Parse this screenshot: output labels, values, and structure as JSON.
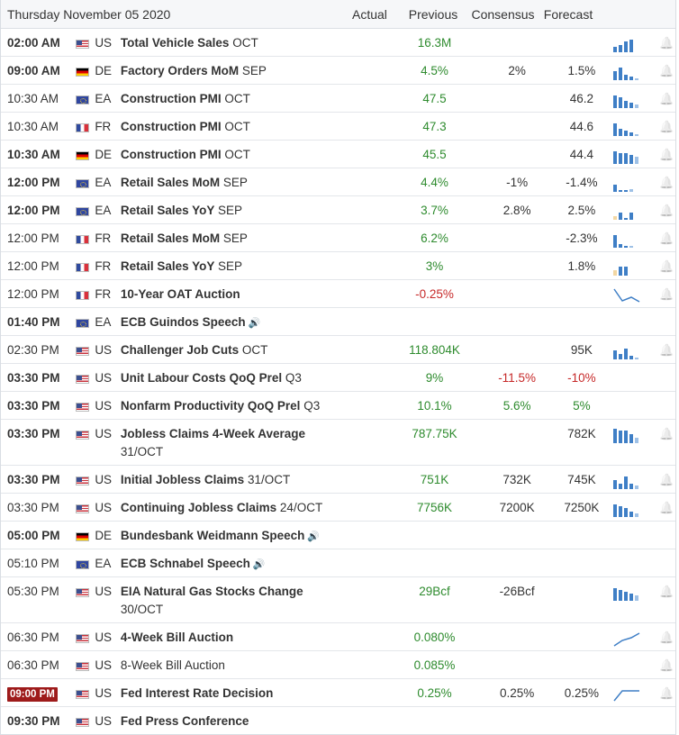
{
  "header": {
    "date": "Thursday November 05 2020",
    "actual": "Actual",
    "previous": "Previous",
    "consensus": "Consensus",
    "forecast": "Forecast"
  },
  "events": [
    {
      "time": "02:00 AM",
      "bold": true,
      "country": "US",
      "flag": "us",
      "name": "Total Vehicle Sales",
      "suffix": "OCT",
      "previous": "16.3M",
      "prev_color": "green",
      "consensus": "",
      "forecast": "",
      "spark": "bars",
      "bell": true
    },
    {
      "time": "09:00 AM",
      "bold": true,
      "country": "DE",
      "flag": "de",
      "name": "Factory Orders MoM",
      "suffix": "SEP",
      "previous": "4.5%",
      "prev_color": "green",
      "consensus": "2%",
      "forecast": "1.5%",
      "spark": "bars",
      "bell": true
    },
    {
      "time": "10:30 AM",
      "bold": false,
      "country": "EA",
      "flag": "eu",
      "name": "Construction PMI",
      "suffix": "OCT",
      "previous": "47.5",
      "prev_color": "green",
      "consensus": "",
      "forecast": "46.2",
      "spark": "bars",
      "bell": true
    },
    {
      "time": "10:30 AM",
      "bold": false,
      "country": "FR",
      "flag": "fr",
      "name": "Construction PMI",
      "suffix": "OCT",
      "previous": "47.3",
      "prev_color": "green",
      "consensus": "",
      "forecast": "44.6",
      "spark": "bars",
      "bell": true
    },
    {
      "time": "10:30 AM",
      "bold": true,
      "country": "DE",
      "flag": "de",
      "name": "Construction PMI",
      "suffix": "OCT",
      "previous": "45.5",
      "prev_color": "green",
      "consensus": "",
      "forecast": "44.4",
      "spark": "bars",
      "bell": true
    },
    {
      "time": "12:00 PM",
      "bold": true,
      "country": "EA",
      "flag": "eu",
      "name": "Retail Sales MoM",
      "suffix": "SEP",
      "previous": "4.4%",
      "prev_color": "green",
      "consensus": "-1%",
      "forecast": "-1.4%",
      "spark": "bars",
      "bell": true
    },
    {
      "time": "12:00 PM",
      "bold": true,
      "country": "EA",
      "flag": "eu",
      "name": "Retail Sales YoY",
      "suffix": "SEP",
      "previous": "3.7%",
      "prev_color": "green",
      "consensus": "2.8%",
      "forecast": "2.5%",
      "spark": "bars",
      "bell": true
    },
    {
      "time": "12:00 PM",
      "bold": false,
      "country": "FR",
      "flag": "fr",
      "name": "Retail Sales MoM",
      "suffix": "SEP",
      "previous": "6.2%",
      "prev_color": "green",
      "consensus": "",
      "forecast": "-2.3%",
      "spark": "bars",
      "bell": true
    },
    {
      "time": "12:00 PM",
      "bold": false,
      "country": "FR",
      "flag": "fr",
      "name": "Retail Sales YoY",
      "suffix": "SEP",
      "previous": "3%",
      "prev_color": "green",
      "consensus": "",
      "forecast": "1.8%",
      "spark": "bars",
      "bell": true
    },
    {
      "time": "12:00 PM",
      "bold": false,
      "country": "FR",
      "flag": "fr",
      "name": "10-Year OAT Auction",
      "suffix": "",
      "previous": "-0.25%",
      "prev_color": "red",
      "consensus": "",
      "forecast": "",
      "spark": "line-down",
      "bell": true
    },
    {
      "time": "01:40 PM",
      "bold": true,
      "country": "EA",
      "flag": "eu",
      "name": "ECB Guindos Speech",
      "suffix": "",
      "speech": true,
      "previous": "",
      "prev_color": "green",
      "consensus": "",
      "forecast": "",
      "spark": "",
      "bell": false
    },
    {
      "time": "02:30 PM",
      "bold": false,
      "country": "US",
      "flag": "us",
      "name": "Challenger Job Cuts",
      "suffix": "OCT",
      "previous": "118.804K",
      "prev_color": "green",
      "consensus": "",
      "forecast": "95K",
      "spark": "bars",
      "bell": true
    },
    {
      "time": "03:30 PM",
      "bold": true,
      "country": "US",
      "flag": "us",
      "name": "Unit Labour Costs QoQ Prel",
      "suffix": "Q3",
      "previous": "9%",
      "prev_color": "green",
      "consensus": "-11.5%",
      "cons_color": "red",
      "forecast": "-10%",
      "fore_color": "red",
      "spark": "",
      "bell": false
    },
    {
      "time": "03:30 PM",
      "bold": true,
      "country": "US",
      "flag": "us",
      "name": "Nonfarm Productivity QoQ Prel",
      "suffix": "Q3",
      "previous": "10.1%",
      "prev_color": "green",
      "consensus": "5.6%",
      "cons_color": "green",
      "forecast": "5%",
      "fore_color": "green",
      "spark": "",
      "bell": false
    },
    {
      "time": "03:30 PM",
      "bold": true,
      "country": "US",
      "flag": "us",
      "name": "Jobless Claims 4-Week Average",
      "suffix": "31/OCT",
      "tall": true,
      "previous": "787.75K",
      "prev_color": "green",
      "consensus": "",
      "forecast": "782K",
      "spark": "bars",
      "bell": true
    },
    {
      "time": "03:30 PM",
      "bold": true,
      "country": "US",
      "flag": "us",
      "name": "Initial Jobless Claims",
      "suffix": "31/OCT",
      "previous": "751K",
      "prev_color": "green",
      "consensus": "732K",
      "forecast": "745K",
      "spark": "bars",
      "bell": true
    },
    {
      "time": "03:30 PM",
      "bold": false,
      "country": "US",
      "flag": "us",
      "name": "Continuing Jobless Claims",
      "suffix": "24/OCT",
      "previous": "7756K",
      "prev_color": "green",
      "consensus": "7200K",
      "forecast": "7250K",
      "spark": "bars",
      "bell": true
    },
    {
      "time": "05:00 PM",
      "bold": true,
      "country": "DE",
      "flag": "de",
      "name": "Bundesbank Weidmann Speech",
      "suffix": "",
      "speech": true,
      "previous": "",
      "prev_color": "green",
      "consensus": "",
      "forecast": "",
      "spark": "",
      "bell": false
    },
    {
      "time": "05:10 PM",
      "bold": false,
      "country": "EA",
      "flag": "eu",
      "name": "ECB Schnabel Speech",
      "suffix": "",
      "speech": true,
      "previous": "",
      "prev_color": "green",
      "consensus": "",
      "forecast": "",
      "spark": "",
      "bell": false
    },
    {
      "time": "05:30 PM",
      "bold": false,
      "country": "US",
      "flag": "us",
      "name": "EIA Natural Gas Stocks Change",
      "suffix": "30/OCT",
      "tall": true,
      "previous": "29Bcf",
      "prev_color": "green",
      "consensus": "-26Bcf",
      "forecast": "",
      "spark": "bars",
      "bell": true
    },
    {
      "time": "06:30 PM",
      "bold": false,
      "country": "US",
      "flag": "us",
      "name": "4-Week Bill Auction",
      "suffix": "",
      "previous": "0.080%",
      "prev_color": "green",
      "consensus": "",
      "forecast": "",
      "spark": "line-up",
      "bell": true
    },
    {
      "time": "06:30 PM",
      "bold": false,
      "country": "US",
      "flag": "us",
      "name": "8-Week Bill Auction",
      "suffix": "",
      "plain": true,
      "previous": "0.085%",
      "prev_color": "green",
      "consensus": "",
      "forecast": "",
      "spark": "",
      "bell": true
    },
    {
      "time": "09:00 PM",
      "bold": true,
      "highlight": true,
      "country": "US",
      "flag": "us",
      "name": "Fed Interest Rate Decision",
      "suffix": "",
      "previous": "0.25%",
      "prev_color": "green",
      "consensus": "0.25%",
      "forecast": "0.25%",
      "spark": "line-flat",
      "bell": true
    },
    {
      "time": "09:30 PM",
      "bold": true,
      "country": "US",
      "flag": "us",
      "name": "Fed Press Conference",
      "suffix": "",
      "previous": "",
      "prev_color": "green",
      "consensus": "",
      "forecast": "",
      "spark": "",
      "bell": false
    }
  ]
}
